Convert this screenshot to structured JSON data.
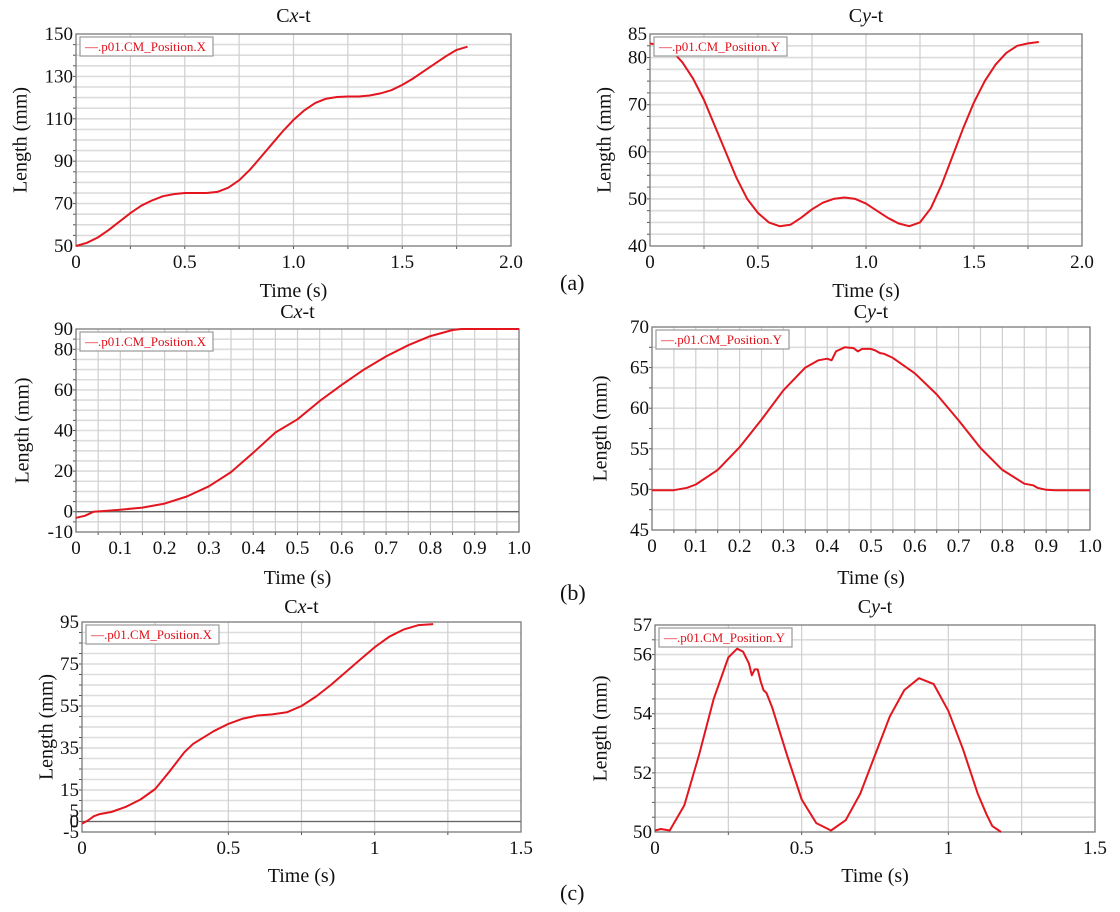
{
  "figure": {
    "panel_labels": [
      "(a)",
      "(b)",
      "(c)"
    ],
    "series_color": "#e3161f",
    "legend_color": "#e0101a"
  },
  "chart_data": [
    {
      "id": "a-cx",
      "panel": "(a)",
      "type": "line",
      "title_prefix": "C",
      "title_var": "x",
      "title_suffix": "-t",
      "xlabel": "Time (s)",
      "ylabel": "Length (mm)",
      "xlim": [
        0,
        2.0
      ],
      "ylim": [
        50,
        150
      ],
      "xticks": [
        0,
        0.5,
        1.0,
        1.5,
        2.0
      ],
      "xtick_labels": [
        "0",
        "0.5",
        "1.0",
        "1.5",
        "2.0"
      ],
      "yticks": [
        50,
        70,
        90,
        110,
        130,
        150
      ],
      "ytick_labels": [
        "50",
        "70",
        "90",
        "110",
        "130",
        "150"
      ],
      "x_gridlines": [
        0.25,
        0.5,
        0.75,
        1.0,
        1.25,
        1.5,
        1.75
      ],
      "y_minor_step": 5,
      "zero_line": false,
      "legend": "—.p01.CM_Position.X",
      "legend_position": "top-left",
      "grid": true,
      "series": [
        {
          "name": ".p01.CM_Position.X",
          "x": [
            0,
            0.05,
            0.1,
            0.15,
            0.2,
            0.25,
            0.3,
            0.35,
            0.4,
            0.45,
            0.5,
            0.55,
            0.6,
            0.65,
            0.7,
            0.75,
            0.8,
            0.85,
            0.9,
            0.95,
            1.0,
            1.05,
            1.1,
            1.15,
            1.2,
            1.25,
            1.3,
            1.35,
            1.4,
            1.45,
            1.5,
            1.55,
            1.6,
            1.65,
            1.7,
            1.75,
            1.8
          ],
          "y": [
            50,
            51.5,
            54,
            57.5,
            61.5,
            65.5,
            69,
            71.5,
            73.5,
            74.5,
            75,
            75,
            75,
            75.5,
            77.5,
            81,
            86,
            92,
            98,
            104,
            109.5,
            114,
            117.5,
            119.5,
            120.3,
            120.5,
            120.5,
            121,
            122,
            123.5,
            126,
            129,
            132.5,
            136,
            139.5,
            142.5,
            144
          ]
        }
      ]
    },
    {
      "id": "a-cy",
      "panel": "(a)",
      "type": "line",
      "title_prefix": "C",
      "title_var": "y",
      "title_suffix": "-t",
      "xlabel": "Time (s)",
      "ylabel": "Length (mm)",
      "xlim": [
        0,
        2.0
      ],
      "ylim": [
        40,
        85
      ],
      "xticks": [
        0,
        0.5,
        1.0,
        1.5,
        2.0
      ],
      "xtick_labels": [
        "0",
        "0.5",
        "1.0",
        "1.5",
        "2.0"
      ],
      "yticks": [
        40,
        50,
        60,
        70,
        80,
        85
      ],
      "ytick_labels": [
        "40",
        "50",
        "60",
        "70",
        "80",
        "85"
      ],
      "x_gridlines": [
        0.25,
        0.5,
        0.75,
        1.0,
        1.25,
        1.5,
        1.75
      ],
      "y_minor_step": 2.5,
      "zero_line": false,
      "legend": "—.p01.CM_Position.Y",
      "legend_position": "top-left",
      "grid": true,
      "series": [
        {
          "name": ".p01.CM_Position.Y",
          "x": [
            0,
            0.05,
            0.1,
            0.15,
            0.2,
            0.25,
            0.3,
            0.35,
            0.4,
            0.45,
            0.5,
            0.55,
            0.6,
            0.65,
            0.7,
            0.75,
            0.8,
            0.85,
            0.9,
            0.95,
            1.0,
            1.05,
            1.1,
            1.15,
            1.2,
            1.25,
            1.3,
            1.35,
            1.4,
            1.45,
            1.5,
            1.55,
            1.6,
            1.65,
            1.7,
            1.75,
            1.8
          ],
          "y": [
            83,
            82.5,
            81.5,
            79,
            75.5,
            71,
            65.5,
            60,
            54.5,
            50,
            47,
            45,
            44.2,
            44.5,
            46,
            47.8,
            49.2,
            50,
            50.3,
            50,
            49,
            47.5,
            46,
            44.8,
            44.2,
            45,
            48,
            53,
            59,
            65,
            70.5,
            75,
            78.5,
            81,
            82.5,
            83,
            83.3
          ]
        }
      ]
    },
    {
      "id": "b-cx",
      "panel": "(b)",
      "type": "line",
      "title_prefix": "C",
      "title_var": "x",
      "title_suffix": "-t",
      "xlabel": "Time (s)",
      "ylabel": "Length (mm)",
      "xlim": [
        0,
        1.0
      ],
      "ylim": [
        -10,
        90
      ],
      "xticks": [
        0,
        0.1,
        0.2,
        0.3,
        0.4,
        0.5,
        0.6,
        0.7,
        0.8,
        0.9,
        1.0
      ],
      "xtick_labels": [
        "0",
        "0.1",
        "0.2",
        "0.3",
        "0.4",
        "0.5",
        "0.6",
        "0.7",
        "0.8",
        "0.9",
        "1.0"
      ],
      "yticks": [
        -10,
        0,
        20,
        40,
        60,
        80,
        90
      ],
      "ytick_labels": [
        "-10",
        "0",
        "20",
        "40",
        "60",
        "80",
        "90"
      ],
      "x_gridlines": [
        0.05,
        0.1,
        0.15,
        0.2,
        0.25,
        0.3,
        0.35,
        0.4,
        0.45,
        0.5,
        0.55,
        0.6,
        0.65,
        0.7,
        0.75,
        0.8,
        0.85,
        0.9,
        0.95
      ],
      "y_minor_step": 5,
      "zero_line": true,
      "legend": "—.p01.CM_Position.X",
      "legend_position": "top-left",
      "grid": true,
      "series": [
        {
          "name": ".p01.CM_Position.X",
          "x": [
            0,
            0.02,
            0.04,
            0.06,
            0.1,
            0.15,
            0.2,
            0.25,
            0.3,
            0.35,
            0.4,
            0.45,
            0.5,
            0.55,
            0.6,
            0.65,
            0.7,
            0.75,
            0.8,
            0.85,
            0.87,
            0.9,
            0.95,
            1.0
          ],
          "y": [
            -3,
            -2,
            0,
            0.3,
            1,
            2,
            4,
            7.5,
            12.5,
            19.5,
            29,
            39,
            45.5,
            54.5,
            62.5,
            70,
            76.5,
            82,
            86.5,
            89.5,
            90,
            90,
            90,
            90
          ]
        }
      ]
    },
    {
      "id": "b-cy",
      "panel": "(b)",
      "type": "line",
      "title_prefix": "C",
      "title_var": "y",
      "title_suffix": "-t",
      "xlabel": "Time (s)",
      "ylabel": "Length (mm)",
      "xlim": [
        0,
        1.0
      ],
      "ylim": [
        45,
        70
      ],
      "xticks": [
        0,
        0.1,
        0.2,
        0.3,
        0.4,
        0.5,
        0.6,
        0.7,
        0.8,
        0.9,
        1.0
      ],
      "xtick_labels": [
        "0",
        "0.1",
        "0.2",
        "0.3",
        "0.4",
        "0.5",
        "0.6",
        "0.7",
        "0.8",
        "0.9",
        "1.0"
      ],
      "yticks": [
        45,
        50,
        55,
        60,
        65,
        70
      ],
      "ytick_labels": [
        "45",
        "50",
        "55",
        "60",
        "65",
        "70"
      ],
      "x_gridlines": [
        0.05,
        0.1,
        0.15,
        0.2,
        0.25,
        0.3,
        0.35,
        0.4,
        0.45,
        0.5,
        0.55,
        0.6,
        0.65,
        0.7,
        0.75,
        0.8,
        0.85,
        0.9,
        0.95
      ],
      "y_minor_step": 2.5,
      "zero_line": false,
      "legend": "—.p01.CM_Position.Y",
      "legend_position": "top-left",
      "grid": true,
      "series": [
        {
          "name": ".p01.CM_Position.Y",
          "x": [
            0,
            0.05,
            0.08,
            0.1,
            0.15,
            0.2,
            0.25,
            0.3,
            0.35,
            0.38,
            0.4,
            0.41,
            0.42,
            0.44,
            0.46,
            0.47,
            0.48,
            0.5,
            0.51,
            0.52,
            0.53,
            0.55,
            0.6,
            0.65,
            0.7,
            0.75,
            0.8,
            0.85,
            0.87,
            0.88,
            0.9,
            0.92,
            0.95,
            1.0
          ],
          "y": [
            49.9,
            49.9,
            50.2,
            50.6,
            52.4,
            55.2,
            58.6,
            62.2,
            65,
            65.9,
            66.1,
            65.9,
            67,
            67.5,
            67.4,
            67,
            67.3,
            67.3,
            67.1,
            66.8,
            66.7,
            66.2,
            64.3,
            61.7,
            58.5,
            55.1,
            52.4,
            50.7,
            50.5,
            50.2,
            49.95,
            49.9,
            49.9,
            49.9
          ]
        }
      ]
    },
    {
      "id": "c-cx",
      "panel": "(c)",
      "type": "line",
      "title_prefix": "C",
      "title_var": "x",
      "title_suffix": "-t",
      "xlabel": "Time (s)",
      "ylabel": "Length (mm)",
      "xlim": [
        0,
        1.5
      ],
      "ylim": [
        -5,
        95
      ],
      "xticks": [
        0,
        0.5,
        1,
        1.5
      ],
      "xtick_labels": [
        "0",
        "0.5",
        "1",
        "1.5"
      ],
      "yticks": [
        -5,
        0,
        5,
        15,
        35,
        55,
        75,
        95
      ],
      "ytick_labels": [
        "-5",
        "0",
        "5",
        "15",
        "35",
        "55",
        "75",
        "95"
      ],
      "x_gridlines": [
        0.25,
        0.5,
        0.75,
        1.0,
        1.25
      ],
      "y_minor_step": 5,
      "zero_line": true,
      "legend": "—.p01.CM_Position.X",
      "legend_position": "top-left",
      "grid": true,
      "series": [
        {
          "name": ".p01.CM_Position.X",
          "x": [
            0,
            0.02,
            0.04,
            0.06,
            0.1,
            0.15,
            0.2,
            0.25,
            0.3,
            0.35,
            0.38,
            0.45,
            0.5,
            0.55,
            0.6,
            0.65,
            0.7,
            0.75,
            0.8,
            0.85,
            0.9,
            0.95,
            1.0,
            1.05,
            1.1,
            1.15,
            1.2
          ],
          "y": [
            -1,
            0.5,
            2.5,
            3.5,
            4.5,
            7,
            10.5,
            15.5,
            24,
            33,
            37,
            43,
            46.5,
            49,
            50.5,
            51,
            52,
            55,
            59.5,
            65,
            71,
            77,
            83,
            88,
            91.5,
            93.5,
            94
          ]
        }
      ]
    },
    {
      "id": "c-cy",
      "panel": "(c)",
      "type": "line",
      "title_prefix": "C",
      "title_var": "y",
      "title_suffix": "-t",
      "xlabel": "Time (s)",
      "ylabel": "Length (mm)",
      "xlim": [
        0,
        1.5
      ],
      "ylim": [
        50,
        57
      ],
      "xticks": [
        0,
        0.5,
        1,
        1.5
      ],
      "xtick_labels": [
        "0",
        "0.5",
        "1",
        "1.5"
      ],
      "yticks": [
        50,
        52,
        54,
        56,
        57
      ],
      "ytick_labels": [
        "50",
        "52",
        "54",
        "56",
        "57"
      ],
      "x_gridlines": [
        0.25,
        0.5,
        0.75,
        1.0,
        1.25
      ],
      "y_minor_step": 0.5,
      "zero_line": false,
      "legend": "—.p01.CM_Position.Y",
      "legend_position": "top-left",
      "grid": true,
      "series": [
        {
          "name": ".p01.CM_Position.Y",
          "x": [
            0,
            0.02,
            0.05,
            0.1,
            0.15,
            0.2,
            0.25,
            0.28,
            0.3,
            0.32,
            0.33,
            0.34,
            0.35,
            0.36,
            0.37,
            0.38,
            0.4,
            0.45,
            0.5,
            0.55,
            0.6,
            0.65,
            0.7,
            0.75,
            0.8,
            0.85,
            0.9,
            0.95,
            1.0,
            1.05,
            1.1,
            1.13,
            1.15,
            1.18
          ],
          "y": [
            50.05,
            50.1,
            50.05,
            50.9,
            52.6,
            54.5,
            55.9,
            56.2,
            56.1,
            55.7,
            55.3,
            55.5,
            55.5,
            55.1,
            54.8,
            54.7,
            54.2,
            52.6,
            51.1,
            50.3,
            50.05,
            50.4,
            51.3,
            52.6,
            53.9,
            54.8,
            55.2,
            55.0,
            54.1,
            52.8,
            51.3,
            50.6,
            50.2,
            50.0
          ]
        }
      ]
    }
  ]
}
